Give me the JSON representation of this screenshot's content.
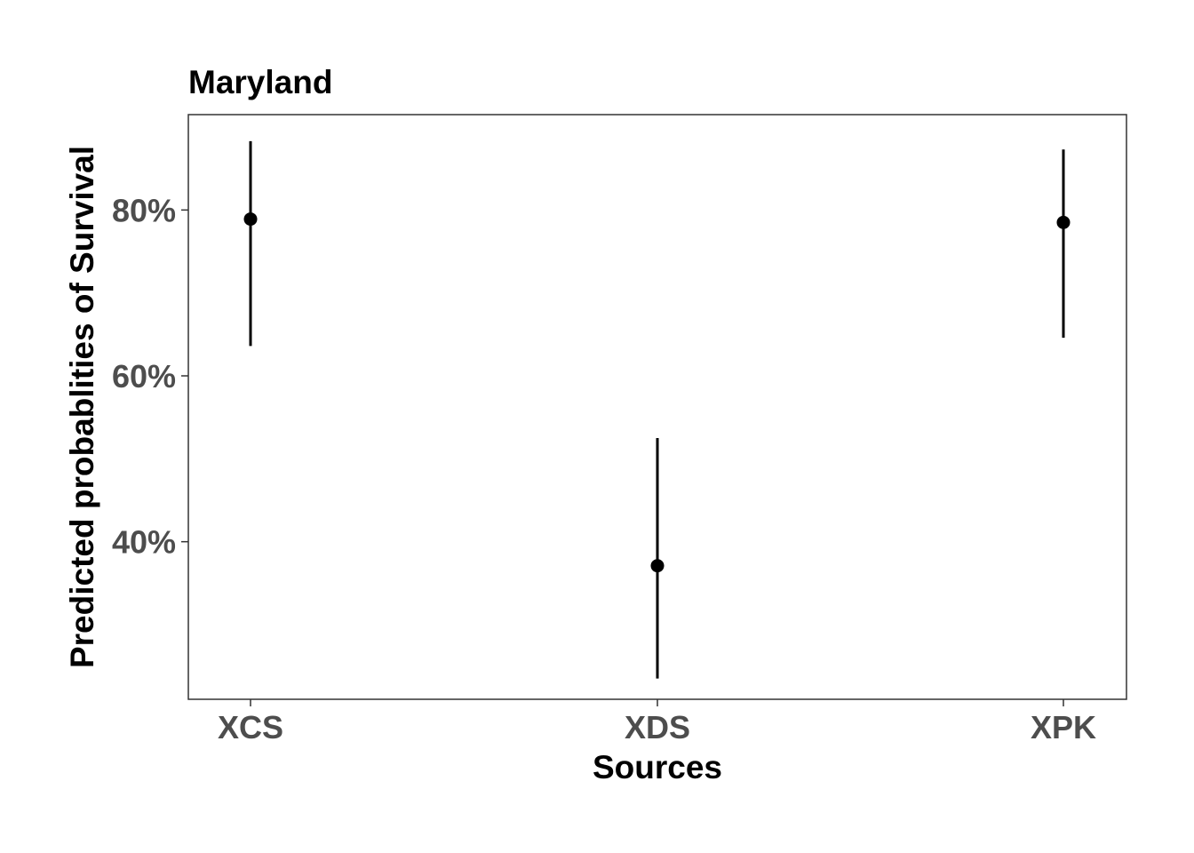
{
  "chart_data": {
    "type": "scatter",
    "title": "Maryland",
    "xlabel": "Sources",
    "ylabel": "Predicted probablities of Survival",
    "categories": [
      "XCS",
      "XDS",
      "XPK"
    ],
    "y_ticks": [
      0.4,
      0.6,
      0.8
    ],
    "y_tick_labels": [
      "40%",
      "60%",
      "80%"
    ],
    "ylim": [
      0.21,
      0.915
    ],
    "grid": false,
    "series": [
      {
        "values": [
          0.789,
          0.371,
          0.785
        ],
        "lower": [
          0.636,
          0.235,
          0.646
        ],
        "upper": [
          0.883,
          0.525,
          0.873
        ]
      }
    ],
    "colors": {
      "point": "#000000",
      "errorbar": "#000000",
      "panel_border": "#333333",
      "tick_label": "#4d4d4d"
    }
  }
}
